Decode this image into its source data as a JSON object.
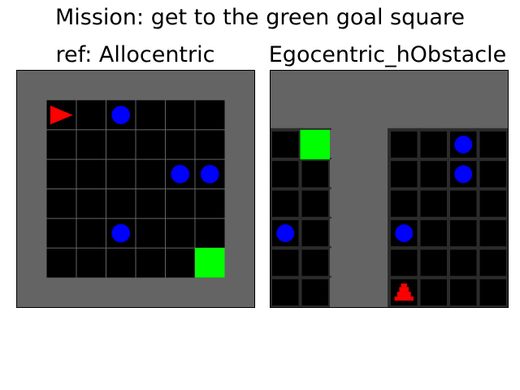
{
  "figure": {
    "title": "Mission: get to the green goal square"
  },
  "colors": {
    "wall": "#646464",
    "floor": "#000000",
    "grid_line": "#646464",
    "goal": "#00ff00",
    "ball": "#0000ff",
    "agent": "#ff0000"
  },
  "allocentric": {
    "title": "ref: Allocentric",
    "grid_cols": 8,
    "grid_rows": 8,
    "agent": {
      "col": 1,
      "row": 1,
      "direction": "right"
    },
    "goal": {
      "col": 6,
      "row": 6
    },
    "balls": [
      {
        "col": 3,
        "row": 1
      },
      {
        "col": 5,
        "row": 3
      },
      {
        "col": 6,
        "row": 3
      },
      {
        "col": 3,
        "row": 5
      }
    ]
  },
  "egocentric": {
    "title": "Egocentric_hObstacle",
    "grid_cols": 8,
    "grid_rows": 8,
    "wall_cells": [
      [
        0,
        0
      ],
      [
        1,
        0
      ],
      [
        2,
        0
      ],
      [
        3,
        0
      ],
      [
        4,
        0
      ],
      [
        5,
        0
      ],
      [
        6,
        0
      ],
      [
        7,
        0
      ],
      [
        0,
        1
      ],
      [
        1,
        1
      ],
      [
        2,
        1
      ],
      [
        3,
        1
      ],
      [
        4,
        1
      ],
      [
        5,
        1
      ],
      [
        6,
        1
      ],
      [
        7,
        1
      ],
      [
        2,
        2
      ],
      [
        3,
        2
      ],
      [
        2,
        3
      ],
      [
        3,
        3
      ],
      [
        2,
        4
      ],
      [
        3,
        4
      ],
      [
        2,
        5
      ],
      [
        3,
        5
      ],
      [
        2,
        6
      ],
      [
        3,
        6
      ],
      [
        2,
        7
      ],
      [
        3,
        7
      ]
    ],
    "goal": {
      "col": 1,
      "row": 2
    },
    "balls": [
      {
        "col": 6,
        "row": 2
      },
      {
        "col": 6,
        "row": 3
      },
      {
        "col": 0,
        "row": 5
      },
      {
        "col": 4,
        "row": 5
      }
    ],
    "agent": {
      "col": 4,
      "row": 7,
      "direction": "up"
    }
  }
}
